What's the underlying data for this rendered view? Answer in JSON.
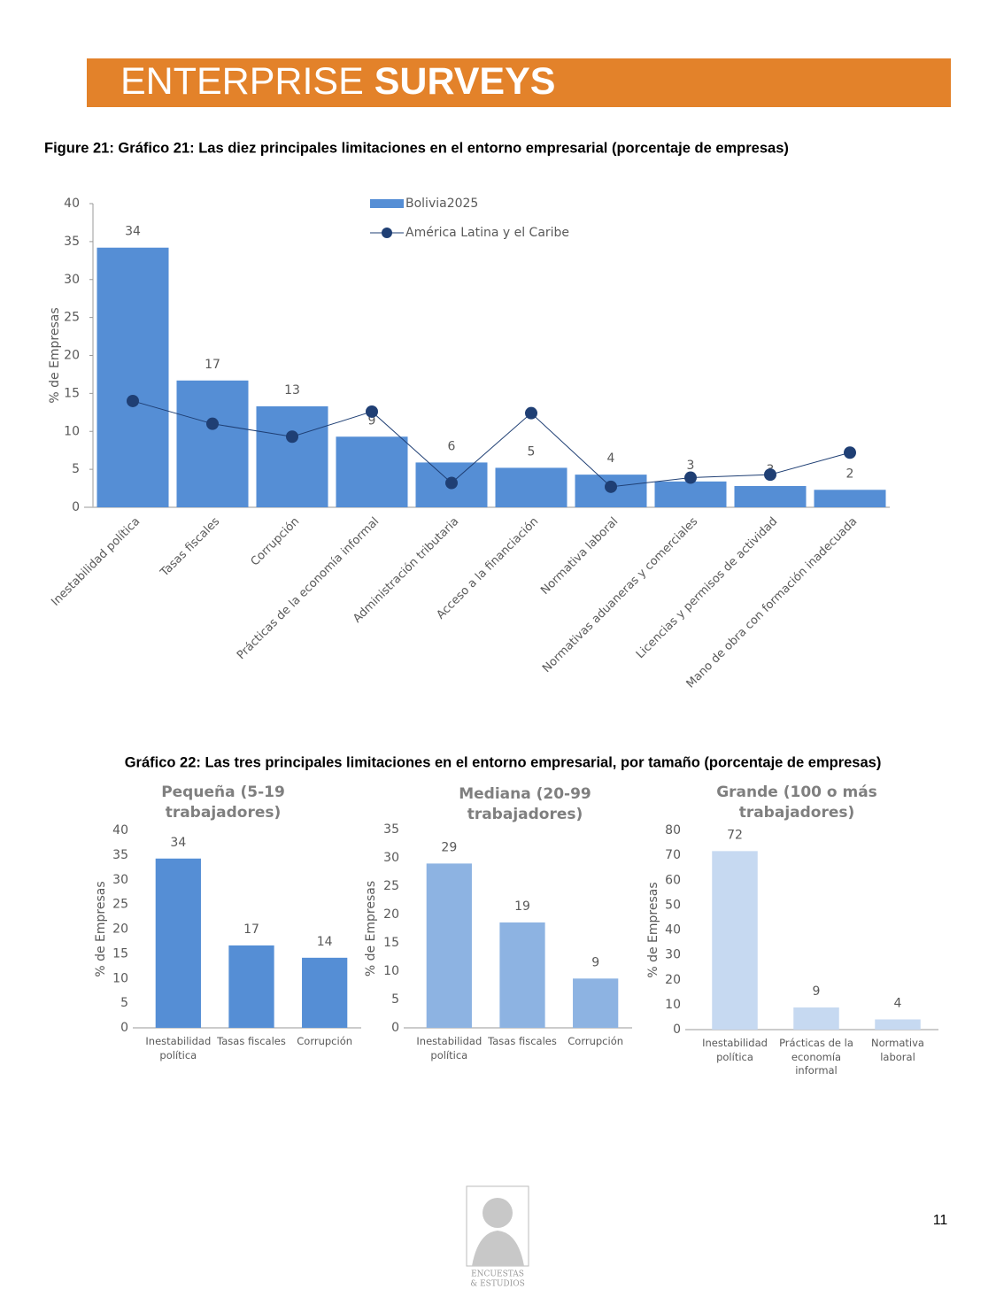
{
  "header": {
    "word1": "ENTERPRISE",
    "word2": "SURVEYS"
  },
  "figure21_caption": "Figure 21: Gráfico 21: Las diez principales limitaciones en el entorno empresarial  (porcentaje de empresas)",
  "figure22_caption": "Gráfico 22: Las tres principales limitaciones en el entorno empresarial, por tamaño (porcentaje de empresas)",
  "page_number": "11",
  "logo_text": [
    "ENCUESTAS",
    "& ESTUDIOS"
  ],
  "chart_data": [
    {
      "type": "combo",
      "y_label": "% de Empresas",
      "legend": "top",
      "categories": [
        "Inestabilidad política",
        "Tasas fiscales",
        "Corrupción",
        "Prácticas de la economía informal",
        "Administración tributaria",
        "Acceso a la financiación",
        "Normativa laboral",
        "Normativas aduaneras y comerciales",
        "Licencias y permisos de actividad",
        "Mano de obra con formación inadecuada"
      ],
      "series": [
        {
          "name": "Bolivia2025",
          "type": "bar",
          "color": "#558ed5",
          "values": [
            34.2,
            16.7,
            13.3,
            9.3,
            5.9,
            5.2,
            4.3,
            3.4,
            2.8,
            2.3
          ],
          "value_labels": [
            "34",
            "17",
            "13",
            "9",
            "6",
            "5",
            "4",
            "3",
            "3",
            "2"
          ]
        },
        {
          "name": "América Latina y el Caribe",
          "type": "line",
          "color": "#1f3f74",
          "values": [
            14.0,
            11.0,
            9.3,
            12.6,
            3.2,
            12.4,
            2.7,
            3.9,
            4.3,
            7.2
          ]
        }
      ],
      "ylim": [
        0,
        40
      ],
      "yticks": [
        0,
        5,
        10,
        15,
        20,
        25,
        30,
        35,
        40
      ]
    },
    {
      "type": "bar",
      "title": "Pequeña (5-19 trabajadores)",
      "y_label": "% de Empresas",
      "color": "#558ed5",
      "categories": [
        "Inestabilidad política",
        "Tasas fiscales",
        "Corrupción"
      ],
      "values": [
        34.3,
        16.7,
        14.2
      ],
      "value_labels": [
        "34",
        "17",
        "14"
      ],
      "ylim": [
        0,
        40
      ],
      "yticks": [
        0,
        5,
        10,
        15,
        20,
        25,
        30,
        35,
        40
      ]
    },
    {
      "type": "bar",
      "title": "Mediana (20-99 trabajadores)",
      "y_label": "% de Empresas",
      "color": "#8db3e2",
      "categories": [
        "Inestabilidad política",
        "Tasas fiscales",
        "Corrupción"
      ],
      "values": [
        29.0,
        18.6,
        8.7
      ],
      "value_labels": [
        "29",
        "19",
        "9"
      ],
      "ylim": [
        0,
        35
      ],
      "yticks": [
        0,
        5,
        10,
        15,
        20,
        25,
        30,
        35
      ]
    },
    {
      "type": "bar",
      "title": "Grande (100 o más trabajadores)",
      "y_label": "% de Empresas",
      "color": "#c6d9f1",
      "categories": [
        "Inestabilidad política",
        "Prácticas de la economía informal",
        "Normativa laboral"
      ],
      "values": [
        71.7,
        8.9,
        4.1
      ],
      "value_labels": [
        "72",
        "9",
        "4"
      ],
      "ylim": [
        0,
        80
      ],
      "yticks": [
        0,
        10,
        20,
        30,
        40,
        50,
        60,
        70,
        80
      ]
    }
  ]
}
